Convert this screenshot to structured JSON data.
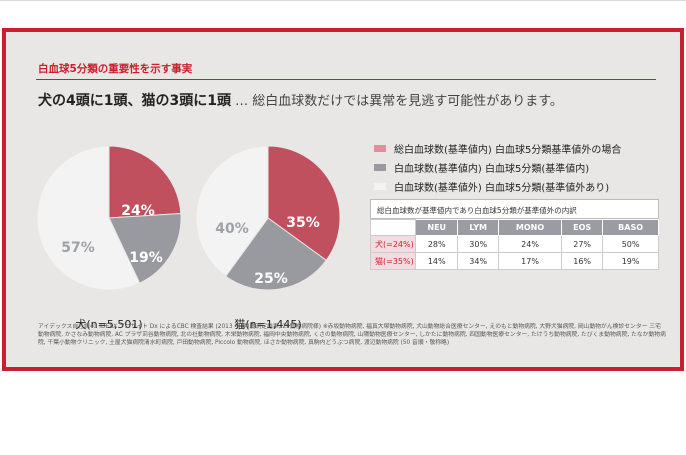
{
  "header": {
    "kicker": "白血球5分類の重要性を示す事実",
    "headline_strong": "犬の4頭に1頭、猫の3頭に1頭",
    "headline_rest": " … 総白血球数だけでは異常を見逃す可能性があります。"
  },
  "colors": {
    "accent": "#c9202f",
    "pink": "#c0505e",
    "gray": "#989aa0",
    "light": "#f3f3f3"
  },
  "legend": [
    {
      "label": "総白血球数(基準値内) 白血球5分類基準値外の場合",
      "color": "#e08f9a"
    },
    {
      "label": "白血球数(基準値内) 白血球5分類(基準値内)",
      "color": "#989aa0"
    },
    {
      "label": "白血球数(基準値外) 白血球5分類(基準値外あり)",
      "color": "#f3f3f3"
    }
  ],
  "chart_data": [
    {
      "type": "pie",
      "caption": "犬(n=5,501)",
      "slices": [
        {
          "label": "24%",
          "value": 24,
          "color": "#c0505e"
        },
        {
          "label": "19%",
          "value": 19,
          "color": "#989aa0"
        },
        {
          "label": "57%",
          "value": 57,
          "color": "#f3f3f3"
        }
      ]
    },
    {
      "type": "pie",
      "caption": "猫(n=1,445)",
      "slices": [
        {
          "label": "35%",
          "value": 35,
          "color": "#c0505e"
        },
        {
          "label": "25%",
          "value": 25,
          "color": "#989aa0"
        },
        {
          "label": "40%",
          "value": 40,
          "color": "#f3f3f3"
        }
      ]
    },
    {
      "type": "table",
      "title": "総白血球数が基準値内であり白血球5分類が基準値外の内訳",
      "columns": [
        "",
        "NEU",
        "LYM",
        "MONO",
        "EOS",
        "BASO"
      ],
      "rows": [
        [
          "犬(=24%)",
          "28%",
          "30%",
          "24%",
          "27%",
          "50%"
        ],
        [
          "猫(=35%)",
          "14%",
          "34%",
          "17%",
          "16%",
          "19%"
        ]
      ]
    }
  ],
  "footnote": "アイデックス自社調べ: IDEXX プロサイト Dx によるCBC 検査結果 (2013 年4月度測定結果, 29動物病院様) ※赤坂動物病院, 福真大塚動物病院, 犬山動物総合医療センター, えのもと動物病院, 大野犬猫病院, 岡山動物がん検診センター 三宅動物病院, かさなみ動物病院, AC プラザ苅谷動物病院, 北の社動物病院, 木栄動物病院, 福岡中央動物病院, くさの動物病院, 山陽動物医療センター, しかたに動物病院, 四国動物医療センター, たけうち動物病院, たびくま動物病院, たなか動物病院, 千葉小動物クリニック, 土屋犬猫病院清水町病院, 戸田動物病院, Piccolo 動物病院, ほさか動物病院, 真駒内どうぶつ病院, 渡辺動物病院 (50 音順・敬称略)"
}
